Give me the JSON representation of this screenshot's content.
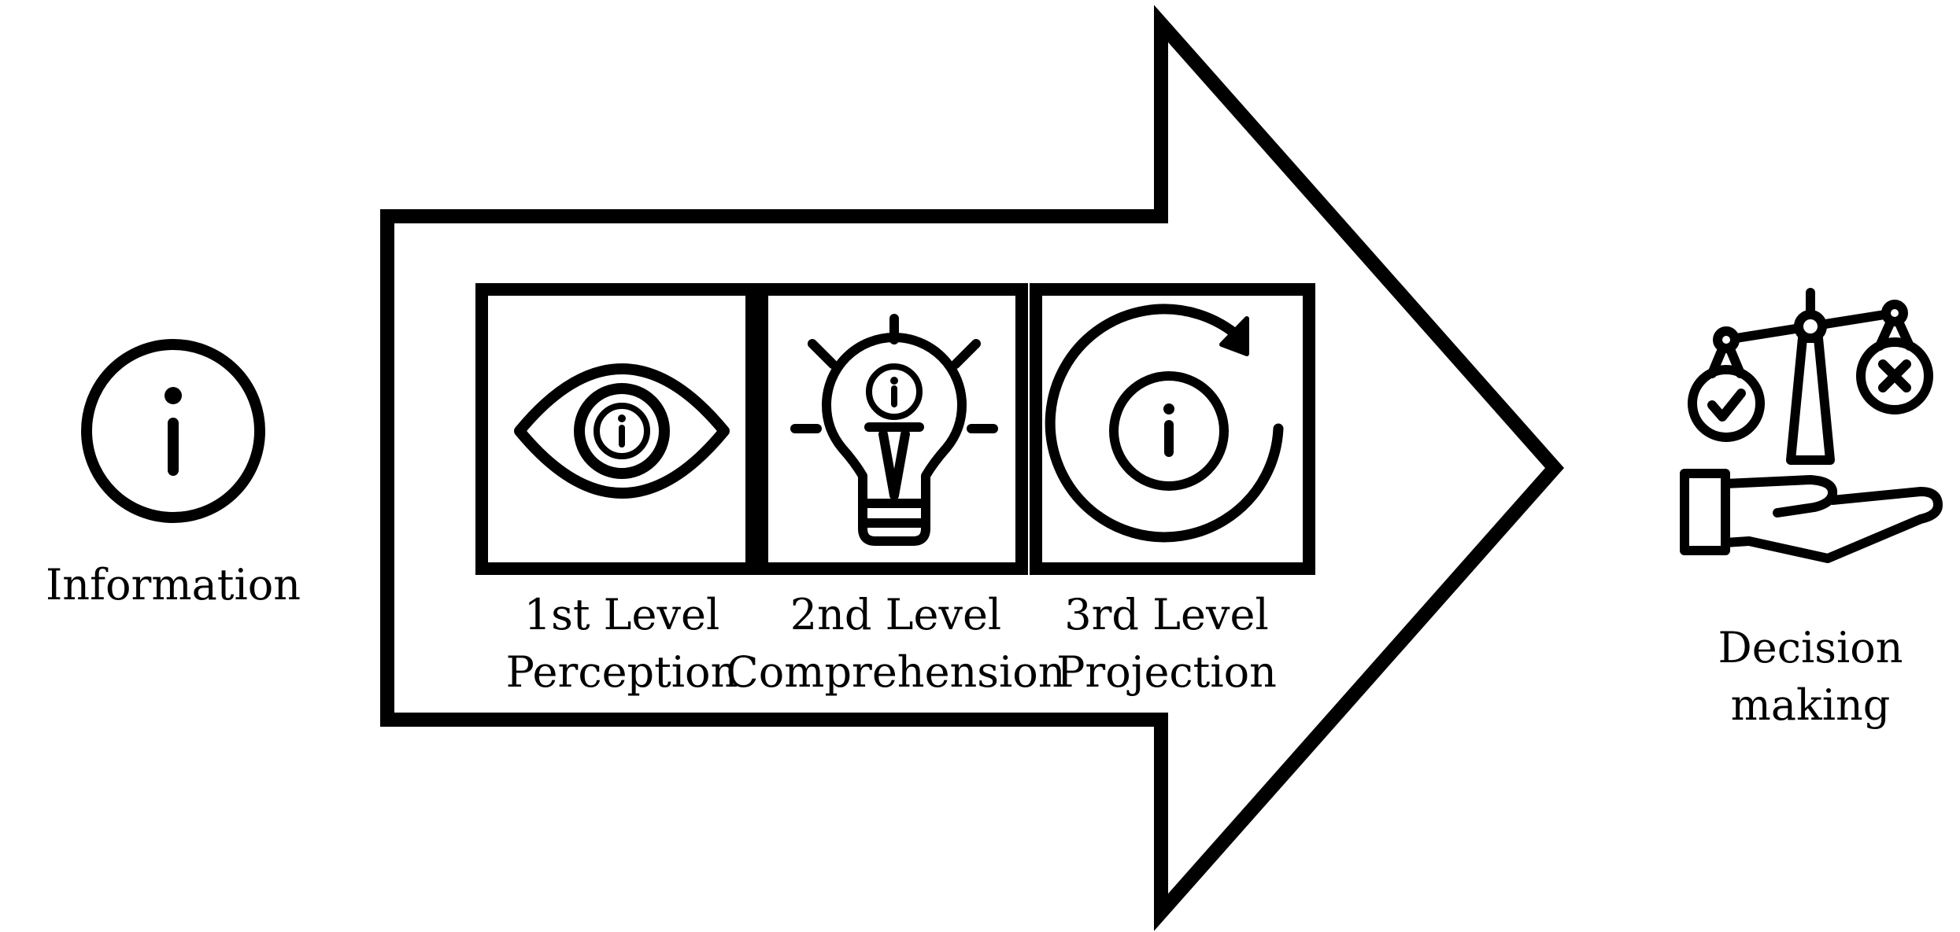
{
  "info": {
    "label": "Information"
  },
  "levels": [
    {
      "line1": "1st Level",
      "line2": "Perception",
      "icon": "eye-icon"
    },
    {
      "line1": "2nd Level",
      "line2": "Comprehension",
      "icon": "lightbulb-icon"
    },
    {
      "line1": "3rd Level",
      "line2": "Projection",
      "icon": "refresh-info-icon"
    }
  ],
  "decision": {
    "line1": "Decision",
    "line2": "making",
    "icon": "balance-scale-hand-icon"
  },
  "colors": {
    "stroke": "#000000",
    "background": "#ffffff"
  }
}
